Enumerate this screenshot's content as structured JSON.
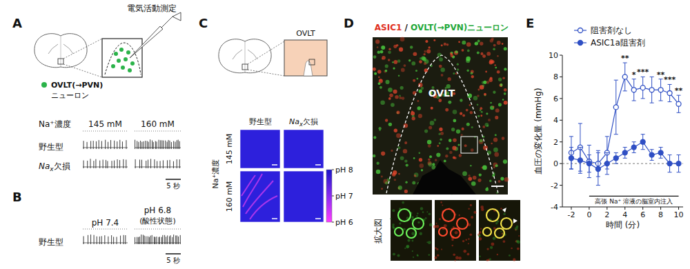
{
  "panels": [
    {
      "label": "A",
      "electrode_label": "電気活動測定",
      "legend_label": [
        "OVLT(→PVN)",
        "ニューロン"
      ],
      "header": "Na⁺濃度",
      "columns": [
        "145 mM",
        "160 mM"
      ],
      "rows": [
        {
          "name": "野生型",
          "spike_counts": [
            15,
            28
          ]
        },
        {
          "name": "Nax欠損",
          "spike_counts": [
            15,
            15
          ]
        }
      ],
      "scale_bar": "5 秒"
    },
    {
      "label": "B",
      "columns": [
        "pH 7.4",
        "pH 6.8"
      ],
      "column_note": "(酸性状態)",
      "rows": [
        {
          "name": "野生型",
          "spike_counts": [
            15,
            30
          ]
        }
      ],
      "scale_bar": "5 秒"
    },
    {
      "label": "C",
      "region_label": "OVLT",
      "columns": [
        "野生型",
        "Nax欠損"
      ],
      "row_header": "Na⁺濃度",
      "rows": [
        "145 mM",
        "160 mM"
      ],
      "colorbar": {
        "range": [
          6,
          8
        ],
        "ticks": [
          {
            "value": 8,
            "label": "pH 8"
          },
          {
            "value": 7,
            "label": "pH 7"
          },
          {
            "value": 6,
            "label": "pH 6"
          }
        ]
      }
    },
    {
      "label": "D",
      "title": [
        "ASIC1",
        "/",
        "OVLT(→PVN)ニューロン"
      ],
      "region_label": "OVLT",
      "inset_label": "拡大図"
    },
    {
      "label": "E"
    }
  ],
  "chart_data": {
    "type": "line",
    "x_label": "時間 (分)",
    "y_label": "血圧の変化量 (mmHg)",
    "x": [
      -2,
      -1,
      0,
      1,
      2,
      3,
      4,
      5,
      6,
      7,
      8,
      9,
      10
    ],
    "xlim": [
      -3,
      10.5
    ],
    "xticks": [
      -2,
      0,
      2,
      4,
      6,
      8,
      10
    ],
    "ylim": [
      -4,
      10
    ],
    "yticks": [
      -4,
      -2,
      0,
      2,
      4,
      6,
      8,
      10
    ],
    "legend": "top",
    "annotation": {
      "text": "高張 Na⁺ 溶液の脳室内注入",
      "x": [
        0,
        10
      ],
      "y": -3
    },
    "series": [
      {
        "name": "阻害剤なし",
        "color": "#2f4fc4",
        "marker": "open_circle",
        "values": [
          1.0,
          1.5,
          0.2,
          0.0,
          1.0,
          5.2,
          8.0,
          6.8,
          7.0,
          6.8,
          6.8,
          6.5,
          5.5
        ],
        "errors": [
          1.5,
          2.2,
          1.5,
          1.2,
          1.5,
          2.5,
          1.3,
          1.0,
          1.0,
          1.2,
          1.0,
          0.8,
          0.8
        ],
        "significance": [
          null,
          null,
          null,
          null,
          null,
          null,
          "**",
          "*",
          "***",
          null,
          "**",
          "***",
          "**"
        ]
      },
      {
        "name": "ASIC1a阻害剤",
        "color": "#2f4fc4",
        "marker": "circle",
        "values": [
          0.5,
          0.3,
          0.0,
          -0.5,
          0.0,
          0.5,
          1.0,
          1.5,
          2.0,
          0.8,
          1.0,
          0.0,
          0.0
        ],
        "errors": [
          1.0,
          1.2,
          0.8,
          1.5,
          1.0,
          0.5,
          0.5,
          0.5,
          0.7,
          0.5,
          0.5,
          0.8,
          0.8
        ]
      }
    ]
  }
}
